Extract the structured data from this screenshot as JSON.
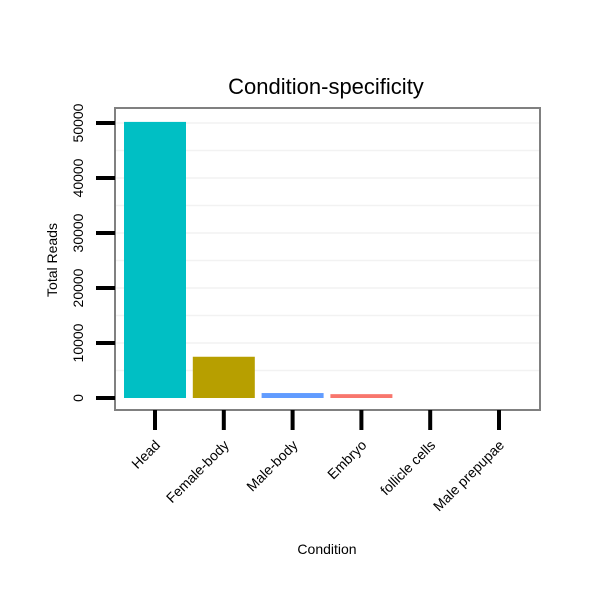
{
  "chart_data": {
    "type": "bar",
    "title": "Condition-specificity",
    "xlabel": "Condition",
    "ylabel": "Total Reads",
    "categories": [
      "Head",
      "Female-body",
      "Male-body",
      "Embryo",
      "follicle cells",
      "Male prepupae"
    ],
    "values": [
      50200,
      7500,
      900,
      700,
      0,
      0
    ],
    "colors": [
      "#00BFC4",
      "#B79F00",
      "#619CFF",
      "#F8766D",
      "#F564E3",
      "#00BA38"
    ],
    "yticks": [
      0,
      10000,
      20000,
      30000,
      40000,
      50000
    ],
    "ylim": [
      -2200,
      54000
    ],
    "grid": true,
    "legend": "none"
  }
}
